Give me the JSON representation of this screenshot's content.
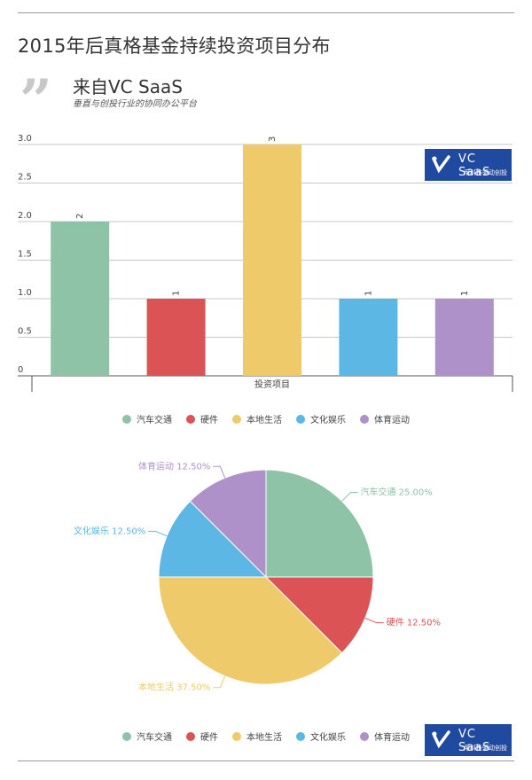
{
  "page": {
    "title": "2015年后真格基金持续投资项目分布",
    "quote_mark": "”",
    "source_title": "来自VC SaaS",
    "source_subtitle": "垂直与创投行业的协同办公平台"
  },
  "logo": {
    "name": "VC SaaS",
    "tagline": "用科技驱动创投",
    "color": "#1f4aa0"
  },
  "colors": {
    "汽车交通": "#8fc3a7",
    "硬件": "#dc5356",
    "本地生活": "#efca6a",
    "文化娱乐": "#5db7e4",
    "体育运动": "#ad91c8"
  },
  "chart_data": [
    {
      "type": "bar",
      "xlabel": "投资项目",
      "ylabel": "",
      "ylim": [
        0,
        3
      ],
      "yticks": [
        "0",
        "0.5",
        "1.0",
        "1.5",
        "2.0",
        "2.5",
        "3.0"
      ],
      "series": [
        {
          "name": "汽车交通",
          "values": [
            2
          ]
        },
        {
          "name": "硬件",
          "values": [
            1
          ]
        },
        {
          "name": "本地生活",
          "values": [
            3
          ]
        },
        {
          "name": "文化娱乐",
          "values": [
            1
          ]
        },
        {
          "name": "体育运动",
          "values": [
            1
          ]
        }
      ],
      "legend": "bottom"
    },
    {
      "type": "pie",
      "slices": [
        {
          "name": "汽车交通",
          "value": 25.0,
          "label": "汽车交通 25.00%"
        },
        {
          "name": "硬件",
          "value": 12.5,
          "label": "硬件 12.50%"
        },
        {
          "name": "本地生活",
          "value": 37.5,
          "label": "本地生活 37.50%"
        },
        {
          "name": "文化娱乐",
          "value": 12.5,
          "label": "文化娱乐 12.50%"
        },
        {
          "name": "体育运动",
          "value": 12.5,
          "label": "体育运动 12.50%"
        }
      ],
      "legend": "bottom"
    }
  ]
}
